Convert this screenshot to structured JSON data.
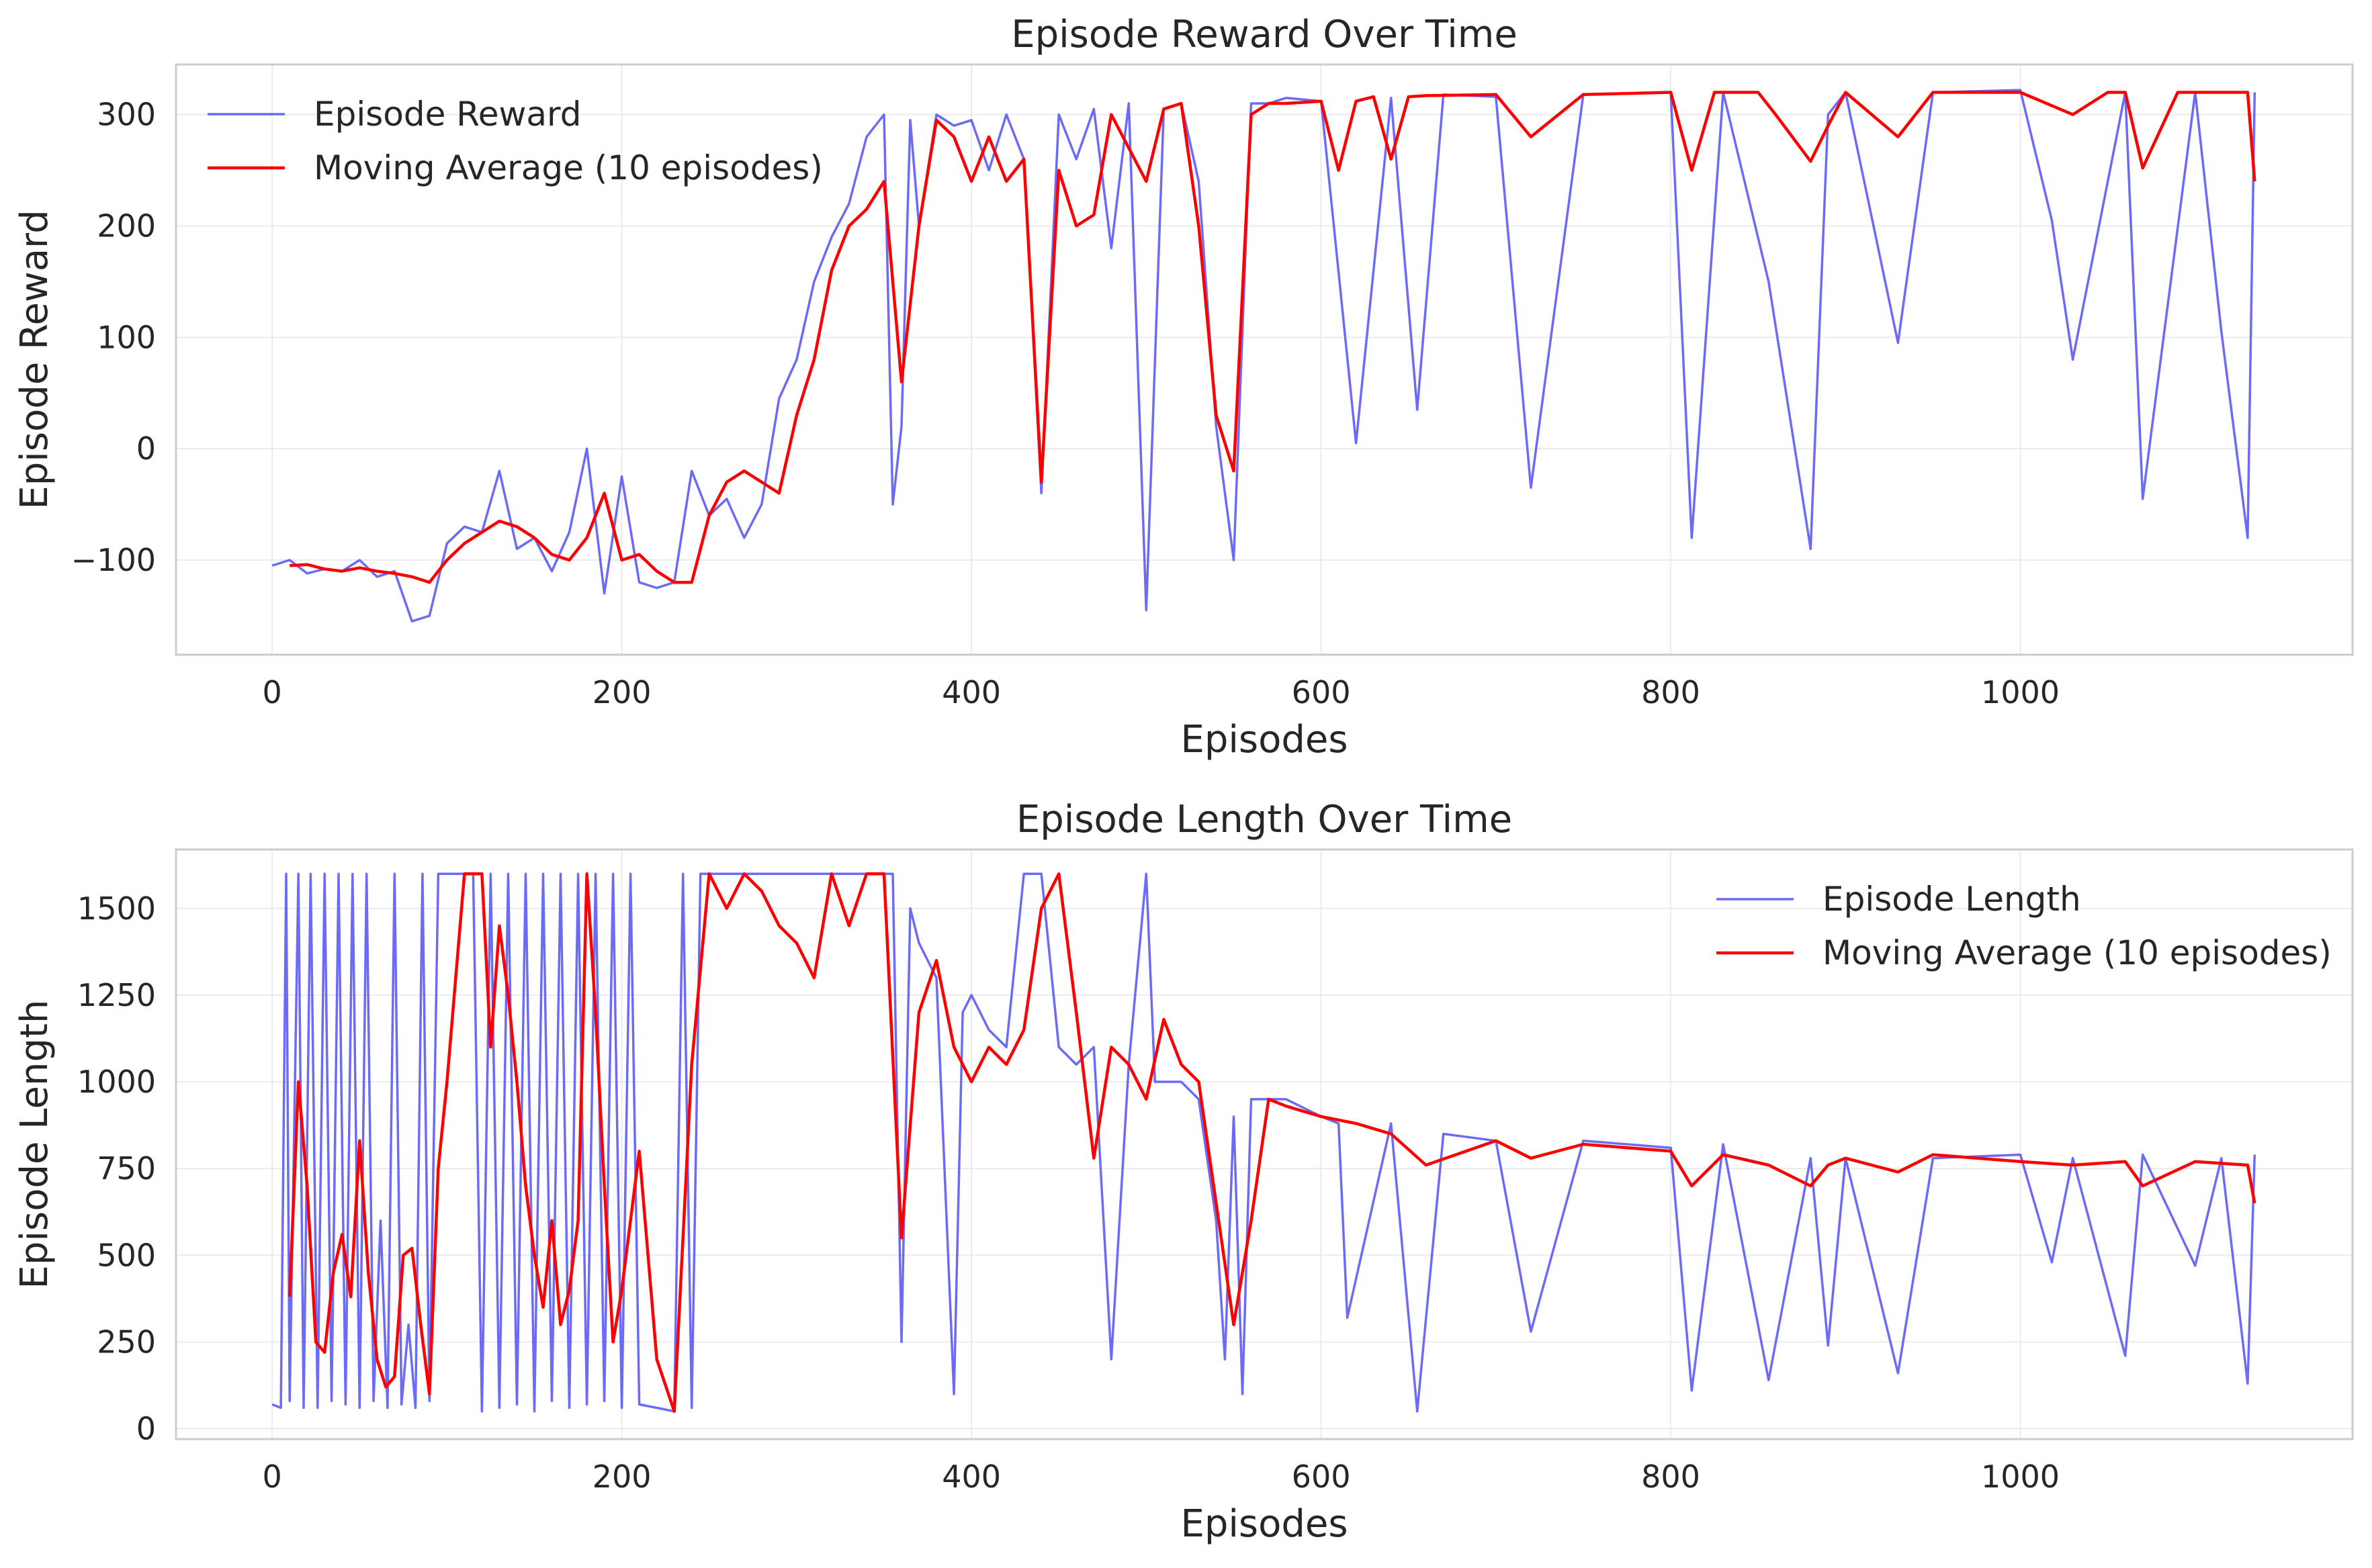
{
  "colors": {
    "raw": "#5b5bf6",
    "avg": "#ff0000",
    "grid": "#ebebeb",
    "frame": "#cccccc"
  },
  "chart_data": [
    {
      "type": "line",
      "title": "Episode Reward Over Time",
      "xlabel": "Episodes",
      "ylabel": "Episode Reward",
      "xlim": [
        -55,
        1190
      ],
      "ylim": [
        -185,
        345
      ],
      "xticks": [
        0,
        200,
        400,
        600,
        800,
        1000
      ],
      "xtick_labels": [
        "0",
        "200",
        "400",
        "600",
        "800",
        "1000"
      ],
      "yticks": [
        -100,
        0,
        100,
        200,
        300
      ],
      "ytick_labels": [
        "−100",
        "0",
        "100",
        "200",
        "300"
      ],
      "grid": true,
      "legend": "upper left",
      "series": [
        {
          "name": "Episode Reward",
          "color": "#5b5bf6",
          "x": [
            0,
            10,
            20,
            30,
            40,
            50,
            60,
            70,
            80,
            90,
            100,
            110,
            120,
            130,
            140,
            150,
            160,
            170,
            180,
            190,
            200,
            210,
            220,
            230,
            240,
            250,
            260,
            270,
            280,
            290,
            300,
            310,
            320,
            330,
            340,
            350,
            355,
            360,
            365,
            370,
            380,
            390,
            400,
            410,
            420,
            430,
            440,
            450,
            460,
            470,
            480,
            490,
            500,
            510,
            520,
            530,
            540,
            550,
            560,
            570,
            580,
            600,
            620,
            640,
            655,
            670,
            700,
            720,
            750,
            800,
            812,
            830,
            856,
            880,
            890,
            900,
            930,
            950,
            1000,
            1018,
            1030,
            1060,
            1070,
            1100,
            1115,
            1130,
            1134
          ],
          "values": [
            -105,
            -100,
            -112,
            -108,
            -110,
            -100,
            -115,
            -110,
            -155,
            -150,
            -85,
            -70,
            -75,
            -20,
            -90,
            -80,
            -110,
            -75,
            0,
            -130,
            -25,
            -120,
            -125,
            -120,
            -20,
            -60,
            -45,
            -80,
            -50,
            45,
            80,
            150,
            190,
            220,
            280,
            300,
            -50,
            20,
            295,
            200,
            300,
            290,
            295,
            250,
            300,
            260,
            -40,
            300,
            260,
            305,
            180,
            310,
            -145,
            305,
            310,
            240,
            20,
            -100,
            310,
            310,
            315,
            312,
            5,
            315,
            35,
            318,
            316,
            -35,
            318,
            320,
            -80,
            320,
            150,
            -90,
            300,
            320,
            95,
            320,
            322,
            205,
            80,
            320,
            -45,
            320,
            105,
            -80,
            320
          ]
        },
        {
          "name": "Moving Average (10 episodes)",
          "color": "#ff0000",
          "x": [
            10,
            20,
            30,
            40,
            50,
            60,
            70,
            80,
            90,
            100,
            110,
            120,
            130,
            140,
            150,
            160,
            170,
            180,
            190,
            200,
            210,
            220,
            230,
            240,
            250,
            260,
            270,
            280,
            290,
            300,
            310,
            320,
            330,
            340,
            350,
            360,
            370,
            380,
            390,
            400,
            410,
            420,
            430,
            440,
            450,
            460,
            470,
            480,
            490,
            500,
            510,
            520,
            530,
            540,
            550,
            560,
            570,
            580,
            600,
            610,
            620,
            630,
            640,
            650,
            660,
            700,
            720,
            750,
            800,
            812,
            825,
            850,
            860,
            880,
            890,
            900,
            930,
            950,
            1000,
            1030,
            1050,
            1060,
            1070,
            1090,
            1100,
            1130,
            1134
          ],
          "values": [
            -105,
            -104,
            -108,
            -110,
            -107,
            -110,
            -112,
            -115,
            -120,
            -100,
            -85,
            -75,
            -65,
            -70,
            -80,
            -95,
            -100,
            -80,
            -40,
            -100,
            -95,
            -110,
            -120,
            -120,
            -60,
            -30,
            -20,
            -30,
            -40,
            30,
            80,
            160,
            200,
            215,
            240,
            60,
            200,
            295,
            280,
            240,
            280,
            240,
            260,
            -30,
            250,
            200,
            210,
            300,
            270,
            240,
            305,
            310,
            200,
            30,
            -20,
            300,
            310,
            310,
            312,
            250,
            312,
            316,
            260,
            316,
            317,
            318,
            280,
            318,
            320,
            250,
            320,
            320,
            300,
            258,
            290,
            320,
            280,
            320,
            320,
            300,
            320,
            320,
            252,
            320,
            320,
            320,
            240
          ]
        }
      ]
    },
    {
      "type": "line",
      "title": "Episode Length Over Time",
      "xlabel": "Episodes",
      "ylabel": "Episode Length",
      "xlim": [
        -55,
        1190
      ],
      "ylim": [
        -30,
        1670
      ],
      "xticks": [
        0,
        200,
        400,
        600,
        800,
        1000
      ],
      "xtick_labels": [
        "0",
        "200",
        "400",
        "600",
        "800",
        "1000"
      ],
      "yticks": [
        0,
        250,
        500,
        750,
        1000,
        1250,
        1500
      ],
      "ytick_labels": [
        "0",
        "250",
        "500",
        "750",
        "1000",
        "1250",
        "1500"
      ],
      "grid": true,
      "legend": "upper right",
      "series": [
        {
          "name": "Episode Length",
          "color": "#5b5bf6",
          "x": [
            0,
            5,
            8,
            10,
            15,
            18,
            22,
            26,
            30,
            34,
            38,
            42,
            46,
            50,
            54,
            58,
            62,
            66,
            70,
            74,
            78,
            82,
            86,
            90,
            95,
            100,
            105,
            110,
            115,
            120,
            125,
            130,
            135,
            140,
            145,
            150,
            155,
            160,
            165,
            170,
            175,
            180,
            185,
            190,
            195,
            200,
            205,
            210,
            220,
            230,
            235,
            240,
            245,
            250,
            260,
            270,
            280,
            290,
            300,
            310,
            320,
            330,
            340,
            350,
            355,
            360,
            365,
            370,
            380,
            390,
            395,
            400,
            410,
            420,
            430,
            440,
            450,
            460,
            470,
            480,
            490,
            500,
            505,
            510,
            520,
            530,
            540,
            545,
            550,
            555,
            560,
            580,
            600,
            610,
            615,
            640,
            655,
            670,
            700,
            720,
            750,
            800,
            812,
            830,
            856,
            880,
            890,
            900,
            930,
            950,
            1000,
            1018,
            1030,
            1060,
            1070,
            1100,
            1115,
            1130,
            1134
          ],
          "values": [
            70,
            60,
            1600,
            80,
            1600,
            60,
            1600,
            60,
            1600,
            80,
            1600,
            70,
            1600,
            60,
            1600,
            80,
            600,
            60,
            1600,
            70,
            300,
            60,
            1600,
            80,
            1600,
            1600,
            1600,
            1600,
            1600,
            50,
            1600,
            60,
            1600,
            70,
            1600,
            50,
            1600,
            80,
            1600,
            60,
            1600,
            70,
            1600,
            80,
            1600,
            60,
            1600,
            70,
            60,
            50,
            1600,
            60,
            1600,
            1600,
            1600,
            1600,
            1600,
            1600,
            1600,
            1600,
            1600,
            1600,
            1600,
            1600,
            1600,
            250,
            1500,
            1400,
            1300,
            100,
            1200,
            1250,
            1150,
            1100,
            1600,
            1600,
            1100,
            1050,
            1100,
            200,
            1050,
            1600,
            1000,
            1000,
            1000,
            950,
            600,
            200,
            900,
            100,
            950,
            950,
            900,
            880,
            320,
            880,
            50,
            850,
            830,
            280,
            830,
            810,
            110,
            820,
            140,
            780,
            240,
            780,
            160,
            780,
            790,
            480,
            780,
            210,
            790,
            470,
            780,
            130,
            790
          ]
        },
        {
          "name": "Moving Average (10 episodes)",
          "color": "#ff0000",
          "x": [
            10,
            15,
            20,
            25,
            30,
            35,
            40,
            45,
            50,
            55,
            60,
            65,
            70,
            75,
            80,
            85,
            90,
            95,
            100,
            110,
            120,
            125,
            130,
            135,
            140,
            145,
            150,
            155,
            160,
            165,
            170,
            175,
            180,
            185,
            190,
            195,
            200,
            210,
            220,
            230,
            240,
            250,
            260,
            270,
            280,
            290,
            300,
            310,
            320,
            330,
            340,
            350,
            360,
            370,
            380,
            390,
            400,
            410,
            420,
            430,
            440,
            450,
            460,
            470,
            480,
            490,
            500,
            510,
            520,
            530,
            540,
            550,
            560,
            570,
            580,
            600,
            620,
            640,
            660,
            700,
            720,
            750,
            800,
            812,
            830,
            856,
            880,
            890,
            900,
            930,
            950,
            1000,
            1030,
            1060,
            1070,
            1100,
            1130,
            1134
          ],
          "values": [
            380,
            1000,
            700,
            250,
            220,
            450,
            560,
            380,
            830,
            450,
            200,
            120,
            150,
            500,
            520,
            300,
            100,
            750,
            1000,
            1600,
            1600,
            1100,
            1450,
            1250,
            1000,
            700,
            500,
            350,
            600,
            300,
            400,
            600,
            1600,
            1200,
            700,
            250,
            400,
            800,
            200,
            50,
            1050,
            1600,
            1500,
            1600,
            1550,
            1450,
            1400,
            1300,
            1600,
            1450,
            1600,
            1600,
            550,
            1200,
            1350,
            1100,
            1000,
            1100,
            1050,
            1150,
            1500,
            1600,
            1200,
            780,
            1100,
            1050,
            950,
            1180,
            1050,
            1000,
            650,
            300,
            600,
            950,
            930,
            900,
            880,
            850,
            760,
            830,
            780,
            820,
            800,
            700,
            790,
            760,
            700,
            760,
            780,
            740,
            790,
            770,
            760,
            770,
            700,
            770,
            760,
            650
          ]
        }
      ]
    }
  ]
}
